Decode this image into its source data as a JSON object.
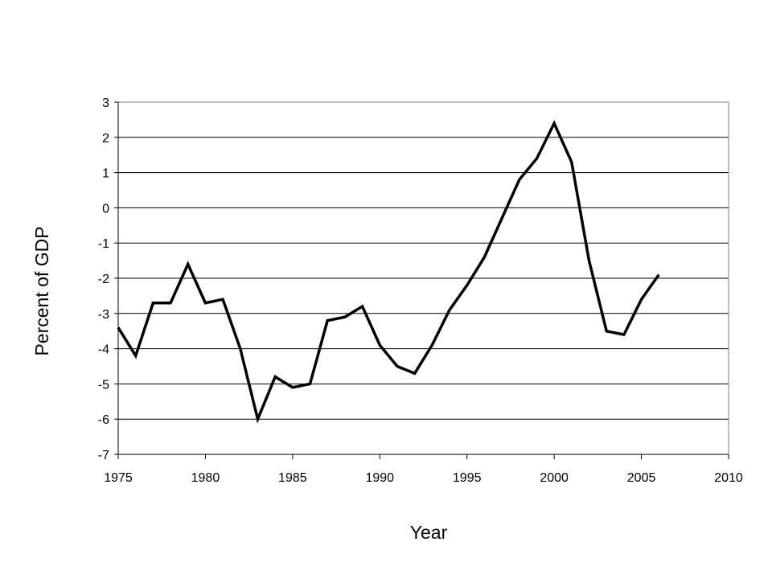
{
  "chart_data": {
    "type": "line",
    "title": "",
    "xlabel": "Year",
    "ylabel": "Percent of GDP",
    "xlim": [
      1975,
      2010
    ],
    "ylim": [
      -7,
      3
    ],
    "x_ticks": [
      "1975",
      "1980",
      "1985",
      "1990",
      "1995",
      "2000",
      "2005",
      "2010"
    ],
    "y_ticks": [
      "3",
      "2",
      "1",
      "0",
      "-1",
      "-2",
      "-3",
      "-4",
      "-5",
      "-6",
      "-7"
    ],
    "grid": true,
    "legend": "none",
    "line_color": "#000000",
    "series": [
      {
        "x": [
          1975,
          1976,
          1977,
          1978,
          1979,
          1980,
          1981,
          1982,
          1983,
          1984,
          1985,
          1986,
          1987,
          1988,
          1989,
          1990,
          1991,
          1992,
          1993,
          1994,
          1995,
          1996,
          1997,
          1998,
          1999,
          2000,
          2001,
          2002,
          2003,
          2004,
          2005,
          2006
        ],
        "values": [
          -3.4,
          -4.2,
          -2.7,
          -2.7,
          -1.6,
          -2.7,
          -2.6,
          -4.0,
          -6.0,
          -4.8,
          -5.1,
          -5.0,
          -3.2,
          -3.1,
          -2.8,
          -3.9,
          -4.5,
          -4.7,
          -3.9,
          -2.9,
          -2.2,
          -1.4,
          -0.3,
          0.8,
          1.4,
          2.4,
          1.3,
          -1.5,
          -3.5,
          -3.6,
          -2.6,
          -1.9
        ]
      }
    ]
  }
}
